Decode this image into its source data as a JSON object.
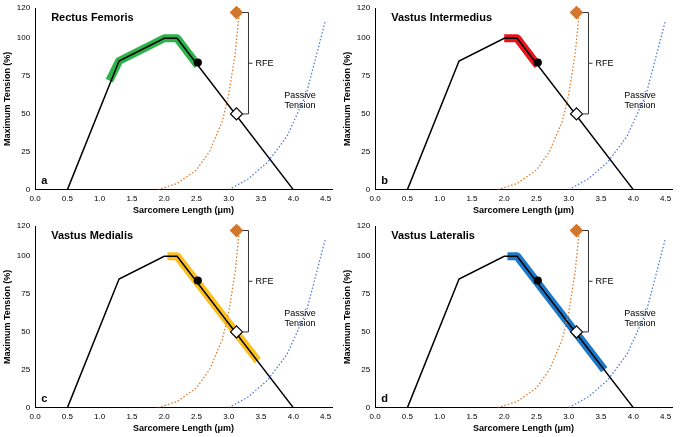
{
  "chart_data": [
    {
      "type": "line",
      "title": "Rectus Femoris",
      "panel": "a",
      "x_label": "Sarcomere Length (μm)",
      "y_label": "Maximum Tension (%)",
      "annotations": [
        "RFE",
        "Passive Tension"
      ],
      "xlim": [
        0,
        4.6
      ],
      "ylim": [
        0,
        120
      ],
      "xticks": [
        {
          "value": 0,
          "label": "0.0"
        },
        {
          "value": 0.5,
          "label": "0.5"
        },
        {
          "value": 1,
          "label": "1.0"
        },
        {
          "value": 1.5,
          "label": "1.5"
        },
        {
          "value": 2,
          "label": "2.0"
        },
        {
          "value": 2.5,
          "label": "2.5"
        },
        {
          "value": 3,
          "label": "3.0"
        },
        {
          "value": 3.5,
          "label": "3.5"
        },
        {
          "value": 4,
          "label": "4.0"
        },
        {
          "value": 4.5,
          "label": "4.5"
        }
      ],
      "yticks": [
        0,
        25,
        50,
        75,
        100,
        120
      ],
      "grid": false,
      "legend": "none",
      "series": [
        {
          "type": "line",
          "color": "#2db34a",
          "line_style": "band",
          "marker": "none",
          "x": [
            1.15,
            1.3,
            2.0,
            2.2,
            2.52
          ],
          "values": [
            72,
            85,
            100,
            100,
            82
          ]
        },
        {
          "type": "line",
          "color": "#000000",
          "line_style": "solid",
          "marker": "none",
          "x": [
            0.5,
            1.3,
            2.0,
            2.2,
            4.0
          ],
          "values": [
            0,
            85,
            100,
            100,
            0
          ]
        },
        {
          "type": "line",
          "color": "#e07a2a",
          "line_style": "dotted",
          "marker": "none",
          "x": [
            1.9,
            2.2,
            2.5,
            2.7,
            2.9,
            3.0,
            3.1,
            3.17
          ],
          "values": [
            0,
            4,
            13,
            25,
            45,
            63,
            90,
            120
          ]
        },
        {
          "type": "line",
          "color": "#4a7fd4",
          "line_style": "dotted",
          "marker": "none",
          "x": [
            3.0,
            3.3,
            3.6,
            3.9,
            4.2,
            4.5
          ],
          "values": [
            0,
            7,
            18,
            35,
            63,
            112
          ]
        },
        {
          "type": "scatter",
          "color": "#000000",
          "marker": "circle",
          "x": [
            2.52
          ],
          "values": [
            84
          ]
        },
        {
          "type": "scatter",
          "color": "#000000",
          "marker": "open_diamond",
          "x": [
            3.12
          ],
          "values": [
            50
          ]
        },
        {
          "type": "scatter",
          "color": "#d2782e",
          "marker": "diamond",
          "x": [
            3.12
          ],
          "values": [
            117
          ]
        }
      ]
    },
    {
      "type": "line",
      "title": "Vastus Intermedius",
      "panel": "b",
      "x_label": "Sarcomere Length (μm)",
      "y_label": "Maximum Tension (%)",
      "annotations": [
        "RFE",
        "Passive Tension"
      ],
      "xlim": [
        0,
        4.6
      ],
      "ylim": [
        0,
        120
      ],
      "xticks": [
        {
          "value": 0,
          "label": "0.0"
        },
        {
          "value": 0.5,
          "label": "0.5"
        },
        {
          "value": 1,
          "label": "1.0"
        },
        {
          "value": 1.5,
          "label": "1.5"
        },
        {
          "value": 2,
          "label": "2.0"
        },
        {
          "value": 2.5,
          "label": "2.5"
        },
        {
          "value": 3,
          "label": "3.0"
        },
        {
          "value": 3.5,
          "label": "3.5"
        },
        {
          "value": 4,
          "label": "4.0"
        },
        {
          "value": 4.5,
          "label": "4.5"
        }
      ],
      "yticks": [
        0,
        25,
        50,
        75,
        100,
        120
      ],
      "grid": false,
      "legend": "none",
      "series": [
        {
          "type": "line",
          "color": "#e8141b",
          "line_style": "band",
          "marker": "none",
          "x": [
            2.0,
            2.2,
            2.52
          ],
          "values": [
            100,
            100,
            82
          ]
        },
        {
          "type": "line",
          "color": "#000000",
          "line_style": "solid",
          "marker": "none",
          "x": [
            0.5,
            1.3,
            2.0,
            2.2,
            4.0
          ],
          "values": [
            0,
            85,
            100,
            100,
            0
          ]
        },
        {
          "type": "line",
          "color": "#e07a2a",
          "line_style": "dotted",
          "marker": "none",
          "x": [
            1.9,
            2.2,
            2.5,
            2.7,
            2.9,
            3.0,
            3.1,
            3.17
          ],
          "values": [
            0,
            4,
            13,
            25,
            45,
            63,
            90,
            120
          ]
        },
        {
          "type": "line",
          "color": "#4a7fd4",
          "line_style": "dotted",
          "marker": "none",
          "x": [
            3.0,
            3.3,
            3.6,
            3.9,
            4.2,
            4.5
          ],
          "values": [
            0,
            7,
            18,
            35,
            63,
            112
          ]
        },
        {
          "type": "scatter",
          "color": "#000000",
          "marker": "circle",
          "x": [
            2.52
          ],
          "values": [
            84
          ]
        },
        {
          "type": "scatter",
          "color": "#000000",
          "marker": "open_diamond",
          "x": [
            3.12
          ],
          "values": [
            50
          ]
        },
        {
          "type": "scatter",
          "color": "#d2782e",
          "marker": "diamond",
          "x": [
            3.12
          ],
          "values": [
            117
          ]
        }
      ]
    },
    {
      "type": "line",
      "title": "Vastus Medialis",
      "panel": "c",
      "x_label": "Sarcomere Length (μm)",
      "y_label": "Maximum Tension (%)",
      "annotations": [
        "RFE",
        "Passive Tension"
      ],
      "xlim": [
        0,
        4.6
      ],
      "ylim": [
        0,
        120
      ],
      "xticks": [
        {
          "value": 0,
          "label": "0.0"
        },
        {
          "value": 0.5,
          "label": "0.5"
        },
        {
          "value": 1,
          "label": "1.0"
        },
        {
          "value": 1.5,
          "label": "1.5"
        },
        {
          "value": 2,
          "label": "2.0"
        },
        {
          "value": 2.5,
          "label": "2.5"
        },
        {
          "value": 3,
          "label": "3.0"
        },
        {
          "value": 3.5,
          "label": "3.5"
        },
        {
          "value": 4,
          "label": "4.0"
        },
        {
          "value": 4.5,
          "label": "4.5"
        }
      ],
      "yticks": [
        0,
        25,
        50,
        75,
        100,
        120
      ],
      "grid": false,
      "legend": "none",
      "series": [
        {
          "type": "line",
          "color": "#fbbf1f",
          "line_style": "band",
          "marker": "none",
          "x": [
            2.05,
            2.2,
            3.45
          ],
          "values": [
            100,
            100,
            31
          ]
        },
        {
          "type": "line",
          "color": "#000000",
          "line_style": "solid",
          "marker": "none",
          "x": [
            0.5,
            1.3,
            2.0,
            2.2,
            4.0
          ],
          "values": [
            0,
            85,
            100,
            100,
            0
          ]
        },
        {
          "type": "line",
          "color": "#e07a2a",
          "line_style": "dotted",
          "marker": "none",
          "x": [
            1.9,
            2.2,
            2.5,
            2.7,
            2.9,
            3.0,
            3.1,
            3.17
          ],
          "values": [
            0,
            4,
            13,
            25,
            45,
            63,
            90,
            120
          ]
        },
        {
          "type": "line",
          "color": "#4a7fd4",
          "line_style": "dotted",
          "marker": "none",
          "x": [
            3.0,
            3.3,
            3.6,
            3.9,
            4.2,
            4.5
          ],
          "values": [
            0,
            7,
            18,
            35,
            63,
            112
          ]
        },
        {
          "type": "scatter",
          "color": "#000000",
          "marker": "circle",
          "x": [
            2.52
          ],
          "values": [
            84
          ]
        },
        {
          "type": "scatter",
          "color": "#000000",
          "marker": "open_diamond",
          "x": [
            3.12
          ],
          "values": [
            50
          ]
        },
        {
          "type": "scatter",
          "color": "#d2782e",
          "marker": "diamond",
          "x": [
            3.12
          ],
          "values": [
            117
          ]
        }
      ]
    },
    {
      "type": "line",
      "title": "Vastus Lateralis",
      "panel": "d",
      "x_label": "Sarcomere Length (μm)",
      "y_label": "Maximum Tension (%)",
      "annotations": [
        "RFE",
        "Passive Tension"
      ],
      "xlim": [
        0,
        4.6
      ],
      "ylim": [
        0,
        120
      ],
      "xticks": [
        {
          "value": 0,
          "label": "0.0"
        },
        {
          "value": 0.5,
          "label": "0.5"
        },
        {
          "value": 1,
          "label": "1.0"
        },
        {
          "value": 1.5,
          "label": "1.5"
        },
        {
          "value": 2,
          "label": "2.0"
        },
        {
          "value": 2.5,
          "label": "2.5"
        },
        {
          "value": 3,
          "label": "3.0"
        },
        {
          "value": 3.5,
          "label": "3.5"
        },
        {
          "value": 4,
          "label": "4.0"
        },
        {
          "value": 4.5,
          "label": "4.5"
        }
      ],
      "yticks": [
        0,
        25,
        50,
        75,
        100,
        120
      ],
      "grid": false,
      "legend": "none",
      "series": [
        {
          "type": "line",
          "color": "#1e78c8",
          "line_style": "band",
          "marker": "none",
          "x": [
            2.05,
            2.2,
            3.55
          ],
          "values": [
            100,
            100,
            25
          ]
        },
        {
          "type": "line",
          "color": "#000000",
          "line_style": "solid",
          "marker": "none",
          "x": [
            0.5,
            1.3,
            2.0,
            2.2,
            4.0
          ],
          "values": [
            0,
            85,
            100,
            100,
            0
          ]
        },
        {
          "type": "line",
          "color": "#e07a2a",
          "line_style": "dotted",
          "marker": "none",
          "x": [
            1.9,
            2.2,
            2.5,
            2.7,
            2.9,
            3.0,
            3.1,
            3.17
          ],
          "values": [
            0,
            4,
            13,
            25,
            45,
            63,
            90,
            120
          ]
        },
        {
          "type": "line",
          "color": "#4a7fd4",
          "line_style": "dotted",
          "marker": "none",
          "x": [
            3.0,
            3.3,
            3.6,
            3.9,
            4.2,
            4.5
          ],
          "values": [
            0,
            7,
            18,
            35,
            63,
            112
          ]
        },
        {
          "type": "scatter",
          "color": "#000000",
          "marker": "circle",
          "x": [
            2.52
          ],
          "values": [
            84
          ]
        },
        {
          "type": "scatter",
          "color": "#000000",
          "marker": "open_diamond",
          "x": [
            3.12
          ],
          "values": [
            50
          ]
        },
        {
          "type": "scatter",
          "color": "#d2782e",
          "marker": "diamond",
          "x": [
            3.12
          ],
          "values": [
            117
          ]
        }
      ]
    }
  ]
}
